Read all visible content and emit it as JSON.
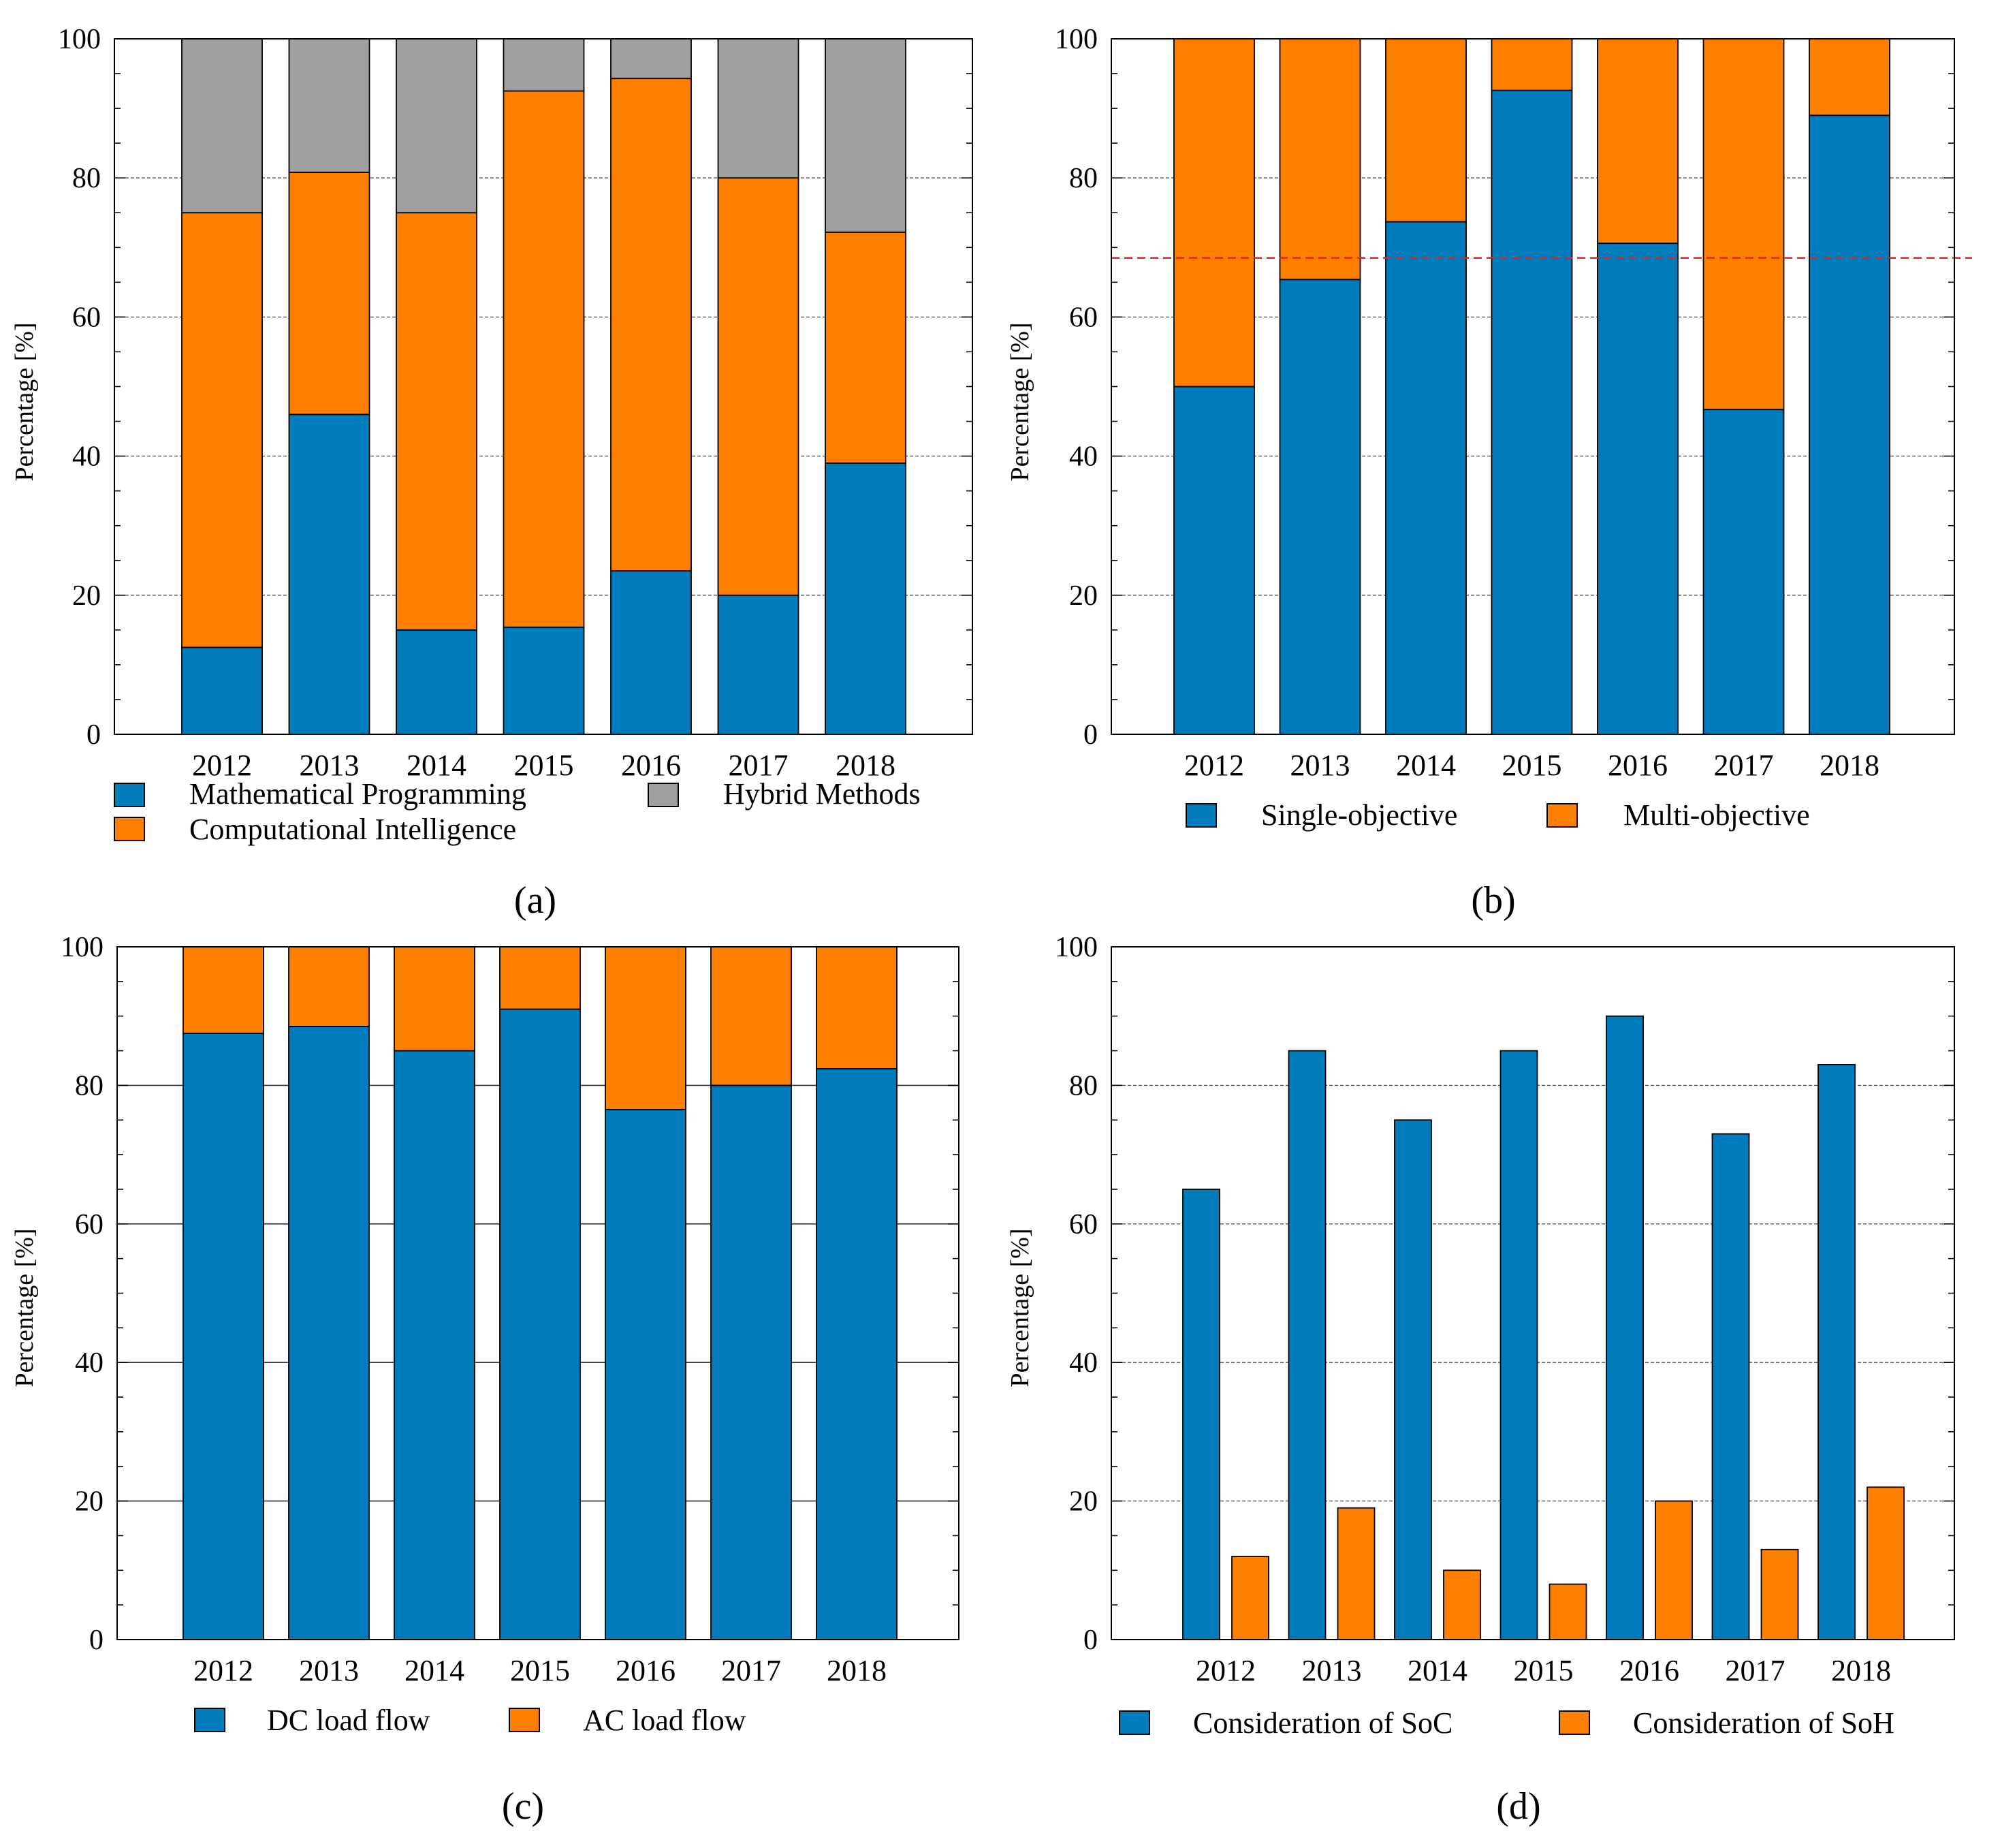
{
  "colors": {
    "blue": "#007bbb",
    "orange": "#ff8000",
    "gray": "#a0a0a0",
    "grid": "#555555",
    "reference": "#ee1c1c",
    "axis": "#000000"
  },
  "chart_data": [
    {
      "id": "a",
      "type": "bar",
      "stacked": true,
      "caption": "(a)",
      "ylabel": "Percentage [%]",
      "ylim": [
        0,
        100
      ],
      "yticks": [
        0,
        20,
        40,
        60,
        80,
        100
      ],
      "grid": true,
      "categories": [
        "2012",
        "2013",
        "2014",
        "2015",
        "2016",
        "2017",
        "2018"
      ],
      "series": [
        {
          "name": "Mathematical Programming",
          "color": "blue",
          "values": [
            12.5,
            46,
            15,
            15.4,
            23.5,
            20,
            39
          ]
        },
        {
          "name": "Computational Intelligence",
          "color": "orange",
          "values": [
            62.5,
            34.8,
            60,
            77.1,
            70.8,
            60,
            33.2
          ]
        },
        {
          "name": "Hybrid Methods",
          "color": "gray",
          "values": [
            25,
            19.2,
            25,
            7.5,
            5.7,
            20,
            27.8
          ]
        }
      ]
    },
    {
      "id": "b",
      "type": "bar",
      "stacked": true,
      "caption": "(b)",
      "ylabel": "Percentage [%]",
      "ylim": [
        0,
        100
      ],
      "yticks": [
        0,
        20,
        40,
        60,
        80,
        100
      ],
      "grid": true,
      "reference_line": 68.5,
      "categories": [
        "2012",
        "2013",
        "2014",
        "2015",
        "2016",
        "2017",
        "2018"
      ],
      "series": [
        {
          "name": "Single-objective",
          "color": "blue",
          "values": [
            50,
            65.4,
            73.7,
            92.6,
            70.6,
            46.7,
            89
          ]
        },
        {
          "name": "Multi-objective",
          "color": "orange",
          "values": [
            50,
            34.6,
            26.3,
            7.4,
            29.4,
            53.3,
            11
          ]
        }
      ]
    },
    {
      "id": "c",
      "type": "bar",
      "stacked": true,
      "caption": "(c)",
      "ylabel": "Percentage [%]",
      "ylim": [
        0,
        100
      ],
      "yticks": [
        0,
        20,
        40,
        60,
        80,
        100
      ],
      "grid": true,
      "categories": [
        "2012",
        "2013",
        "2014",
        "2015",
        "2016",
        "2017",
        "2018"
      ],
      "series": [
        {
          "name": "DC load flow",
          "color": "blue",
          "values": [
            87.5,
            88.5,
            85,
            91,
            76.5,
            80,
            82.4
          ]
        },
        {
          "name": "AC load flow",
          "color": "orange",
          "values": [
            12.5,
            11.5,
            15,
            9,
            23.5,
            20,
            17.6
          ]
        }
      ]
    },
    {
      "id": "d",
      "type": "bar",
      "stacked": false,
      "caption": "(d)",
      "ylabel": "Percentage [%]",
      "ylim": [
        0,
        100
      ],
      "yticks": [
        0,
        20,
        40,
        60,
        80,
        100
      ],
      "grid": true,
      "categories": [
        "2012",
        "2013",
        "2014",
        "2015",
        "2016",
        "2017",
        "2018"
      ],
      "series": [
        {
          "name": "Consideration of SoC",
          "color": "blue",
          "values": [
            65,
            85,
            75,
            85,
            90,
            73,
            83
          ]
        },
        {
          "name": "Consideration of SoH",
          "color": "orange",
          "values": [
            12,
            19,
            10,
            8,
            20,
            13,
            22
          ]
        }
      ]
    }
  ]
}
